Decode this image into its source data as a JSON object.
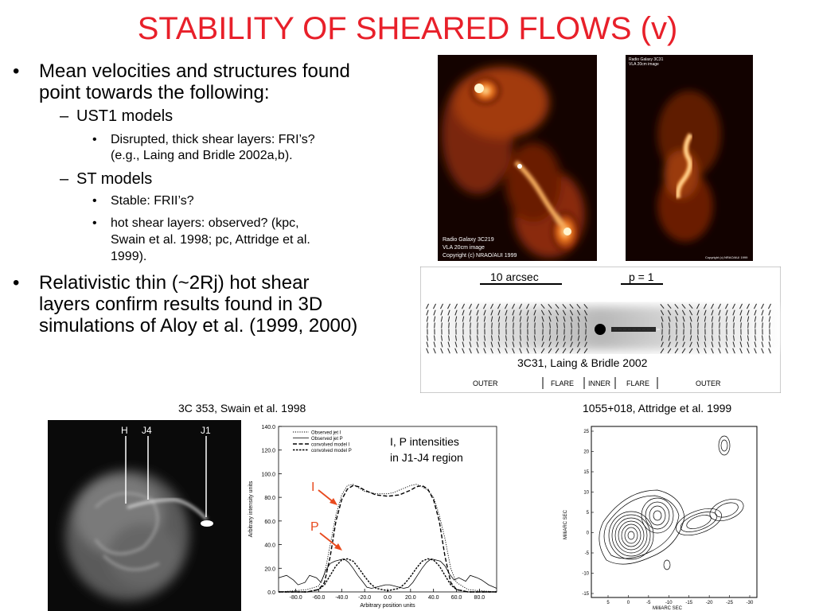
{
  "slide": {
    "title": "STABILITY OF SHEARED FLOWS (v)",
    "bullets": {
      "b1_line1": "Mean velocities and structures found",
      "b1_line2": "point towards the following:",
      "sub1": "UST1 models",
      "sub1_item1_line1": "Disrupted, thick shear layers: FRI’s?",
      "sub1_item1_line2": "(e.g., Laing and Bridle 2002a,b).",
      "sub2": "ST models",
      "sub2_item1": "Stable: FRII’s?",
      "sub2_item2_line1": "hot shear layers: observed? (kpc,",
      "sub2_item2_line2": "Swain et al. 1998; pc, Attridge et al.",
      "sub2_item2_line3": "1999).",
      "b2_line1": "Relativistic thin (~2Rj) hot shear",
      "b2_line2": "layers confirm results found in 3D",
      "b2_line3": "simulations of Aloy et al. (1999, 2000)"
    },
    "markers": {
      "bullet": "•",
      "dash": "–"
    }
  },
  "images": {
    "radio_3c219": {
      "line1": "Radio Galaxy 3C219",
      "line2": "VLA 20cm image",
      "line3": "Copyright (c) NRAO/AUI 1999"
    },
    "radio_3c31": {
      "line1": "Radio Galaxy 3C31",
      "line2": "VLA 20cm image",
      "copyright": "Copyright (c) NRAO/AUI 1999"
    },
    "polarization_map": {
      "scale_label": "10 arcsec",
      "p_label": "p = 1",
      "caption": "3C31, Laing & Bridle 2002",
      "regions": [
        "OUTER",
        "FLARE",
        "INNER",
        "FLARE",
        "OUTER"
      ]
    },
    "swain_caption": "3C 353, Swain et al. 1998",
    "attridge_caption": "1055+018, Attridge et al. 1999",
    "xray_labels": [
      "H",
      "J4",
      "J1"
    ],
    "contour_axes": {
      "ylabel": "MilliARC SEC",
      "xlabel": "MilliARC SEC",
      "yticks": [
        "25",
        "20",
        "15",
        "10",
        "5",
        "0",
        "-5",
        "-10",
        "-15"
      ],
      "xticks": [
        "5",
        "0",
        "-5",
        "-10",
        "-15",
        "-20",
        "-25",
        "-30"
      ]
    }
  },
  "chart_data": {
    "type": "line",
    "title": "",
    "xlabel": "Arbitrary position units",
    "ylabel": "Arbitrary intensity units",
    "xlim": [
      -95,
      95
    ],
    "ylim": [
      0,
      140
    ],
    "xticks": [
      "-80.0",
      "-60.0",
      "-40.0",
      "-20.0",
      "0.0",
      "20.0",
      "40.0",
      "60.0",
      "80.0"
    ],
    "yticks": [
      "0.0",
      "20.0",
      "40.0",
      "60.0",
      "80.0",
      "100.0",
      "120.0",
      "140.0"
    ],
    "legend": [
      "Observed jet I",
      "Observed jet P",
      "convolved model I",
      "convolved model P"
    ],
    "annotation": [
      "I, P intensities",
      "in J1-J4 region"
    ],
    "arrow_labels": [
      "I",
      "P"
    ],
    "series": [
      {
        "name": "Observed jet I",
        "style": "dotted",
        "x": [
          -95,
          -80,
          -70,
          -60,
          -55,
          -50,
          -45,
          -40,
          -35,
          -30,
          -25,
          -20,
          -15,
          -10,
          -5,
          0,
          5,
          10,
          15,
          20,
          25,
          30,
          35,
          40,
          45,
          50,
          55,
          60,
          70,
          80,
          95
        ],
        "values": [
          0,
          1,
          2,
          5,
          15,
          40,
          65,
          82,
          90,
          91,
          88,
          85,
          84,
          83,
          83,
          83,
          84,
          86,
          88,
          90,
          91,
          89,
          86,
          80,
          65,
          45,
          20,
          8,
          2,
          1,
          0
        ]
      },
      {
        "name": "Observed jet P",
        "style": "solid",
        "x": [
          -95,
          -88,
          -82,
          -78,
          -72,
          -68,
          -62,
          -58,
          -54,
          -50,
          -46,
          -42,
          -38,
          -34,
          -30,
          -26,
          -22,
          -18,
          -14,
          -10,
          -6,
          -2,
          2,
          6,
          10,
          14,
          18,
          22,
          26,
          30,
          34,
          38,
          42,
          46,
          50,
          54,
          58,
          62,
          68,
          72,
          78,
          82,
          88,
          95
        ],
        "values": [
          12,
          14,
          10,
          6,
          8,
          14,
          12,
          8,
          18,
          24,
          26,
          27,
          28,
          25,
          20,
          14,
          9,
          4,
          3,
          4,
          5,
          6,
          6,
          5,
          4,
          3,
          4,
          8,
          14,
          20,
          25,
          28,
          27,
          26,
          22,
          15,
          10,
          12,
          9,
          14,
          12,
          10,
          6,
          3
        ]
      },
      {
        "name": "convolved model I",
        "style": "dashed",
        "x": [
          -95,
          -70,
          -60,
          -55,
          -50,
          -45,
          -40,
          -35,
          -30,
          -25,
          -20,
          -10,
          0,
          10,
          20,
          25,
          30,
          35,
          40,
          45,
          50,
          55,
          60,
          70,
          95
        ],
        "values": [
          0,
          0,
          2,
          8,
          30,
          60,
          78,
          87,
          90,
          89,
          86,
          82,
          81,
          82,
          86,
          89,
          90,
          87,
          78,
          60,
          30,
          8,
          2,
          0,
          0
        ]
      },
      {
        "name": "convolved model P",
        "style": "dash-dot",
        "x": [
          -95,
          -70,
          -60,
          -55,
          -50,
          -45,
          -40,
          -35,
          -30,
          -25,
          -20,
          -15,
          -10,
          0,
          10,
          15,
          20,
          25,
          30,
          35,
          40,
          45,
          50,
          55,
          60,
          70,
          95
        ],
        "values": [
          0,
          0,
          2,
          6,
          14,
          22,
          27,
          28,
          26,
          20,
          13,
          7,
          3,
          1,
          3,
          7,
          13,
          20,
          26,
          28,
          27,
          22,
          14,
          6,
          2,
          0,
          0
        ]
      }
    ]
  },
  "colors": {
    "title": "#e8202a",
    "arrow": "#e84a1e"
  }
}
